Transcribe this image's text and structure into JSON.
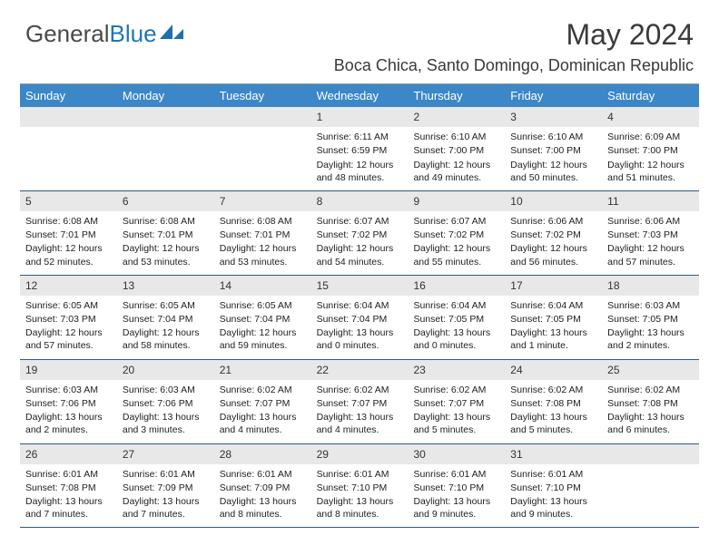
{
  "brand": {
    "part1": "General",
    "part2": "Blue"
  },
  "title": "May 2024",
  "location": "Boca Chica, Santo Domingo, Dominican Republic",
  "colors": {
    "header_bg": "#3b87c8",
    "header_text": "#ffffff",
    "daynum_bg": "#e8e8e8",
    "week_border": "#2a5a8a",
    "logo_blue": "#1f77b4"
  },
  "weekdays": [
    "Sunday",
    "Monday",
    "Tuesday",
    "Wednesday",
    "Thursday",
    "Friday",
    "Saturday"
  ],
  "weeks": [
    [
      null,
      null,
      null,
      {
        "n": "1",
        "sr": "6:11 AM",
        "ss": "6:59 PM",
        "dl": "12 hours and 48 minutes."
      },
      {
        "n": "2",
        "sr": "6:10 AM",
        "ss": "7:00 PM",
        "dl": "12 hours and 49 minutes."
      },
      {
        "n": "3",
        "sr": "6:10 AM",
        "ss": "7:00 PM",
        "dl": "12 hours and 50 minutes."
      },
      {
        "n": "4",
        "sr": "6:09 AM",
        "ss": "7:00 PM",
        "dl": "12 hours and 51 minutes."
      }
    ],
    [
      {
        "n": "5",
        "sr": "6:08 AM",
        "ss": "7:01 PM",
        "dl": "12 hours and 52 minutes."
      },
      {
        "n": "6",
        "sr": "6:08 AM",
        "ss": "7:01 PM",
        "dl": "12 hours and 53 minutes."
      },
      {
        "n": "7",
        "sr": "6:08 AM",
        "ss": "7:01 PM",
        "dl": "12 hours and 53 minutes."
      },
      {
        "n": "8",
        "sr": "6:07 AM",
        "ss": "7:02 PM",
        "dl": "12 hours and 54 minutes."
      },
      {
        "n": "9",
        "sr": "6:07 AM",
        "ss": "7:02 PM",
        "dl": "12 hours and 55 minutes."
      },
      {
        "n": "10",
        "sr": "6:06 AM",
        "ss": "7:02 PM",
        "dl": "12 hours and 56 minutes."
      },
      {
        "n": "11",
        "sr": "6:06 AM",
        "ss": "7:03 PM",
        "dl": "12 hours and 57 minutes."
      }
    ],
    [
      {
        "n": "12",
        "sr": "6:05 AM",
        "ss": "7:03 PM",
        "dl": "12 hours and 57 minutes."
      },
      {
        "n": "13",
        "sr": "6:05 AM",
        "ss": "7:04 PM",
        "dl": "12 hours and 58 minutes."
      },
      {
        "n": "14",
        "sr": "6:05 AM",
        "ss": "7:04 PM",
        "dl": "12 hours and 59 minutes."
      },
      {
        "n": "15",
        "sr": "6:04 AM",
        "ss": "7:04 PM",
        "dl": "13 hours and 0 minutes."
      },
      {
        "n": "16",
        "sr": "6:04 AM",
        "ss": "7:05 PM",
        "dl": "13 hours and 0 minutes."
      },
      {
        "n": "17",
        "sr": "6:04 AM",
        "ss": "7:05 PM",
        "dl": "13 hours and 1 minute."
      },
      {
        "n": "18",
        "sr": "6:03 AM",
        "ss": "7:05 PM",
        "dl": "13 hours and 2 minutes."
      }
    ],
    [
      {
        "n": "19",
        "sr": "6:03 AM",
        "ss": "7:06 PM",
        "dl": "13 hours and 2 minutes."
      },
      {
        "n": "20",
        "sr": "6:03 AM",
        "ss": "7:06 PM",
        "dl": "13 hours and 3 minutes."
      },
      {
        "n": "21",
        "sr": "6:02 AM",
        "ss": "7:07 PM",
        "dl": "13 hours and 4 minutes."
      },
      {
        "n": "22",
        "sr": "6:02 AM",
        "ss": "7:07 PM",
        "dl": "13 hours and 4 minutes."
      },
      {
        "n": "23",
        "sr": "6:02 AM",
        "ss": "7:07 PM",
        "dl": "13 hours and 5 minutes."
      },
      {
        "n": "24",
        "sr": "6:02 AM",
        "ss": "7:08 PM",
        "dl": "13 hours and 5 minutes."
      },
      {
        "n": "25",
        "sr": "6:02 AM",
        "ss": "7:08 PM",
        "dl": "13 hours and 6 minutes."
      }
    ],
    [
      {
        "n": "26",
        "sr": "6:01 AM",
        "ss": "7:08 PM",
        "dl": "13 hours and 7 minutes."
      },
      {
        "n": "27",
        "sr": "6:01 AM",
        "ss": "7:09 PM",
        "dl": "13 hours and 7 minutes."
      },
      {
        "n": "28",
        "sr": "6:01 AM",
        "ss": "7:09 PM",
        "dl": "13 hours and 8 minutes."
      },
      {
        "n": "29",
        "sr": "6:01 AM",
        "ss": "7:10 PM",
        "dl": "13 hours and 8 minutes."
      },
      {
        "n": "30",
        "sr": "6:01 AM",
        "ss": "7:10 PM",
        "dl": "13 hours and 9 minutes."
      },
      {
        "n": "31",
        "sr": "6:01 AM",
        "ss": "7:10 PM",
        "dl": "13 hours and 9 minutes."
      },
      null
    ]
  ],
  "labels": {
    "sunrise": "Sunrise:",
    "sunset": "Sunset:",
    "daylight": "Daylight:"
  }
}
